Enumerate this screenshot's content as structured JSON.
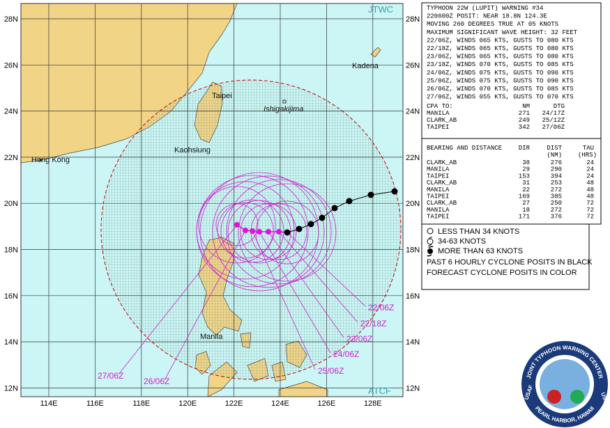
{
  "map": {
    "corner_top": "JTWC",
    "corner_bottom": "ATCF",
    "lat_labels": [
      "28N",
      "26N",
      "24N",
      "22N",
      "20N",
      "18N",
      "16N",
      "14N",
      "12N"
    ],
    "lon_labels": [
      "114E",
      "116E",
      "118E",
      "120E",
      "122E",
      "124E",
      "126E",
      "128E"
    ],
    "places": [
      "Hong Kong",
      "Taipei",
      "Kaohsiung",
      "Ishigakijima",
      "Kadena",
      "Manila"
    ],
    "forecast_labels": [
      "22/06Z",
      "22/18Z",
      "23/06Z",
      "24/06Z",
      "25/06Z",
      "26/06Z",
      "27/06Z"
    ]
  },
  "warning": {
    "lines": [
      "TYPHOON 22W (LUPIT) WARNING #34",
      "220600Z POSIT: NEAR 18.8N 124.3E",
      "MOVING 260 DEGREES TRUE AT 05 KNOTS",
      "MAXIMUM SIGNIFICANT WAVE HEIGHT: 32 FEET",
      "22/06Z, WINDS 065 KTS, GUSTS TO 080 KTS",
      "22/18Z, WINDS 065 KTS, GUSTS TO 080 KTS",
      "23/06Z, WINDS 065 KTS, GUSTS TO 080 KTS",
      "23/18Z, WINDS 070 KTS, GUSTS TO 085 KTS",
      "24/06Z, WINDS 075 KTS, GUSTS TO 090 KTS",
      "25/06Z, WINDS 075 KTS, GUSTS TO 090 KTS",
      "26/06Z, WINDS 070 KTS, GUSTS TO 085 KTS",
      "27/06Z, WINDS 055 KTS, GUSTS TO 070 KTS"
    ]
  },
  "cpa": {
    "title": "CPA TO:",
    "headers": [
      "NM",
      "DTG"
    ],
    "rows": [
      [
        "MANILA",
        "271",
        "24/17Z"
      ],
      [
        "CLARK_AB",
        "249",
        "25/12Z"
      ],
      [
        "TAIPEI",
        "342",
        "27/06Z"
      ]
    ]
  },
  "bearing": {
    "title": "BEARING AND DISTANCE",
    "headers": [
      "DIR",
      "DIST",
      "TAU"
    ],
    "subheaders": [
      "(NM)",
      "(HRS)"
    ],
    "rows": [
      [
        "CLARK_AB",
        "38",
        "276",
        "24"
      ],
      [
        "MANILA",
        "29",
        "290",
        "24"
      ],
      [
        "TAIPEI",
        "153",
        "394",
        "24"
      ],
      [
        "CLARK_AB",
        "31",
        "253",
        "48"
      ],
      [
        "MANILA",
        "22",
        "272",
        "48"
      ],
      [
        "TAIPEI",
        "169",
        "385",
        "48"
      ],
      [
        "CLARK_AB",
        "27",
        "250",
        "72"
      ],
      [
        "MANILA",
        "18",
        "272",
        "72"
      ],
      [
        "TAIPEI",
        "171",
        "376",
        "72"
      ]
    ]
  },
  "legend": {
    "items": [
      "LESS THAN 34 KNOTS",
      "34-63 KNOTS",
      "MORE THAN 63 KNOTS"
    ],
    "notes": [
      "PAST 6 HOURLY CYCLONE POSITS IN BLACK",
      "FORECAST CYCLONE POSITS IN COLOR"
    ]
  },
  "seal": {
    "top": "JOINT TYPHOON WARNING CENTER",
    "bottom": "PEARL HARBOR, HAWAII",
    "left": "USAF",
    "right": "USN"
  }
}
